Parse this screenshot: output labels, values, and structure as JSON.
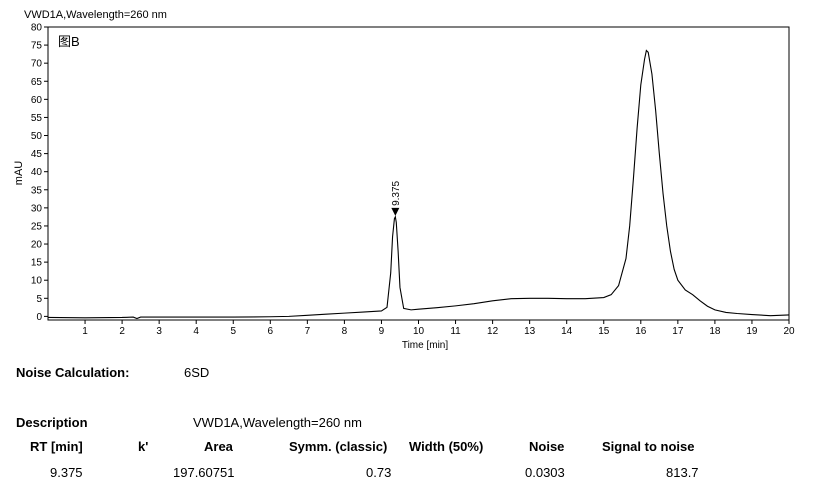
{
  "chart_data": {
    "type": "line",
    "title": "VWD1A,Wavelength=260 nm",
    "panel_label": "图B",
    "xlabel": "Time [min]",
    "ylabel": "mAU",
    "xlim": [
      0,
      20
    ],
    "ylim": [
      -1,
      80
    ],
    "x_ticks": [
      1,
      2,
      3,
      4,
      5,
      6,
      7,
      8,
      9,
      10,
      11,
      12,
      13,
      14,
      15,
      16,
      17,
      18,
      19,
      20
    ],
    "y_ticks": [
      0,
      5,
      10,
      15,
      20,
      25,
      30,
      35,
      40,
      45,
      50,
      55,
      60,
      65,
      70,
      75,
      80
    ],
    "grid": false,
    "series": [
      {
        "x": [
          0,
          1,
          2,
          2.3,
          2.4,
          2.5,
          3,
          4,
          5,
          6,
          6.5,
          7,
          7.5,
          8,
          8.5,
          9,
          9.15,
          9.25,
          9.3,
          9.35,
          9.375,
          9.4,
          9.45,
          9.5,
          9.6,
          9.8,
          10,
          10.5,
          11,
          11.5,
          12,
          12.5,
          13,
          13.5,
          14,
          14.5,
          15,
          15.2,
          15.4,
          15.6,
          15.7,
          15.8,
          15.9,
          16.0,
          16.1,
          16.15,
          16.2,
          16.3,
          16.4,
          16.5,
          16.6,
          16.7,
          16.8,
          16.9,
          17.0,
          17.2,
          17.4,
          17.6,
          17.8,
          18.0,
          18.3,
          18.6,
          19.0,
          19.5,
          20
        ],
        "y": [
          -0.3,
          -0.4,
          -0.3,
          -0.2,
          -0.6,
          -0.2,
          -0.2,
          -0.2,
          -0.2,
          -0.1,
          0,
          0.3,
          0.6,
          0.9,
          1.2,
          1.5,
          2.5,
          12,
          22,
          27,
          27.5,
          26,
          18,
          8,
          2.2,
          1.8,
          2.0,
          2.4,
          2.9,
          3.5,
          4.3,
          4.9,
          5.0,
          5.0,
          4.9,
          4.9,
          5.2,
          6.0,
          8.5,
          16,
          25,
          38,
          52,
          64,
          71,
          73.5,
          73,
          67,
          57,
          45,
          34,
          25,
          18,
          13,
          10,
          7.3,
          6.0,
          4.3,
          2.8,
          1.8,
          1.1,
          0.8,
          0.5,
          0.2,
          0.4
        ]
      }
    ],
    "annotations": [
      {
        "text": "9.375",
        "x": 9.375,
        "y": 27.5,
        "marker": "down-triangle"
      }
    ]
  },
  "noise": {
    "label": "Noise Calculation:",
    "value": "6SD"
  },
  "table": {
    "description_label": "Description",
    "description_value": "VWD1A,Wavelength=260 nm",
    "headers": [
      "RT [min]",
      "k'",
      "Area",
      "Symm. (classic)",
      "Width (50%)",
      "Noise",
      "Signal to noise"
    ],
    "rows": [
      [
        "9.375",
        "",
        "197.60751",
        "0.73",
        "",
        "0.0303",
        "813.7"
      ]
    ]
  }
}
